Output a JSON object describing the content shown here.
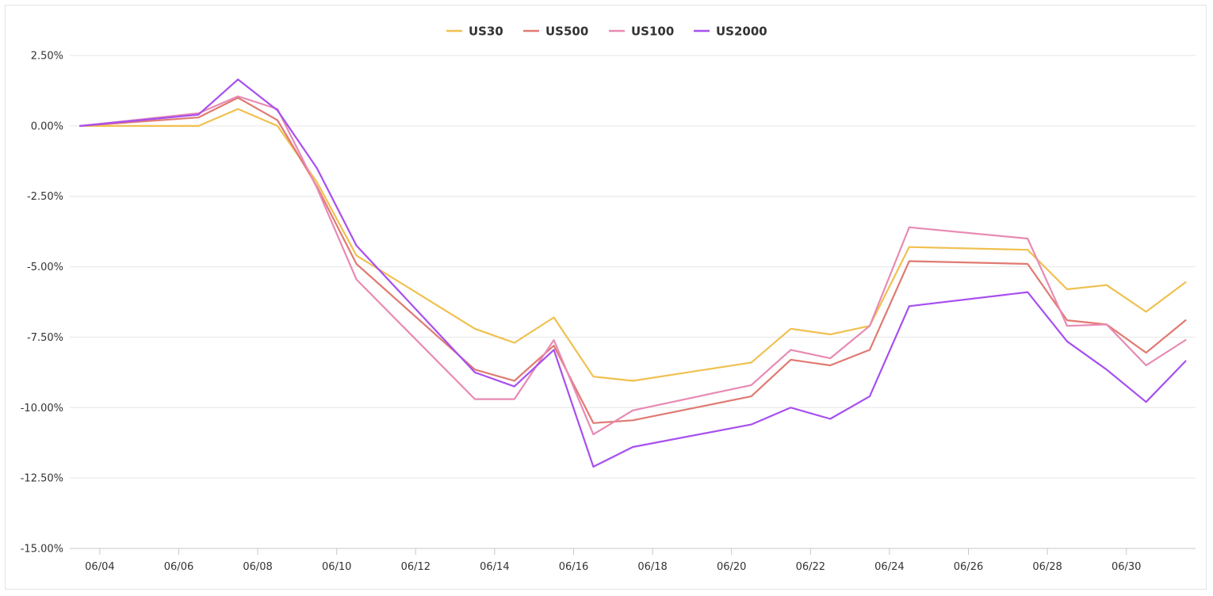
{
  "chart_data": {
    "type": "line",
    "title": "",
    "xlabel": "",
    "ylabel": "",
    "legend_position": "top-center",
    "grid": true,
    "ylim": [
      -15,
      2.5
    ],
    "y_ticks": [
      2.5,
      0,
      -2.5,
      -5,
      -7.5,
      -10,
      -12.5,
      -15
    ],
    "y_tick_labels": [
      "2.50%",
      "0.00%",
      "-2.50%",
      "-5.00%",
      "-7.50%",
      "-10.00%",
      "-12.50%",
      "-15.00%"
    ],
    "x_tick_labels": [
      "06/04",
      "06/06",
      "06/08",
      "06/10",
      "06/12",
      "06/14",
      "06/16",
      "06/18",
      "06/20",
      "06/22",
      "06/24",
      "06/26",
      "06/28",
      "06/30"
    ],
    "x": [
      "06/03",
      "06/06",
      "06/07",
      "06/08",
      "06/09",
      "06/10",
      "06/13",
      "06/14",
      "06/15",
      "06/16",
      "06/17",
      "06/20",
      "06/21",
      "06/22",
      "06/23",
      "06/24",
      "06/27",
      "06/28",
      "06/29",
      "06/30",
      "07/01"
    ],
    "series": [
      {
        "name": "US30",
        "color": "#f0c050",
        "values": [
          0,
          0,
          0.6,
          0,
          -2.0,
          -4.6,
          -7.2,
          -7.7,
          -6.8,
          -8.9,
          -9.05,
          -8.4,
          -7.2,
          -7.4,
          -7.1,
          -4.3,
          -4.4,
          -5.8,
          -5.65,
          -6.6,
          -5.55
        ]
      },
      {
        "name": "US500",
        "color": "#e07a72",
        "values": [
          0,
          0.3,
          1.0,
          0.2,
          -2.15,
          -4.9,
          -8.65,
          -9.05,
          -7.8,
          -10.55,
          -10.45,
          -9.6,
          -8.3,
          -8.5,
          -7.95,
          -4.8,
          -4.9,
          -6.9,
          -7.05,
          -8.05,
          -6.9
        ]
      },
      {
        "name": "US100",
        "color": "#e88ab4",
        "values": [
          0,
          0.45,
          1.05,
          0.6,
          -2.2,
          -5.45,
          -9.7,
          -9.7,
          -7.6,
          -10.95,
          -10.1,
          -9.2,
          -7.95,
          -8.25,
          -7.1,
          -3.6,
          -4.0,
          -7.1,
          -7.05,
          -8.5,
          -7.6
        ]
      },
      {
        "name": "US2000",
        "color": "#a74ff0",
        "values": [
          0,
          0.4,
          1.65,
          0.55,
          -1.5,
          -4.25,
          -8.75,
          -9.25,
          -7.95,
          -12.1,
          -11.4,
          -10.6,
          -10.0,
          -10.4,
          -9.6,
          -6.4,
          -5.9,
          -7.65,
          -8.65,
          -9.8,
          -8.35
        ]
      }
    ]
  }
}
